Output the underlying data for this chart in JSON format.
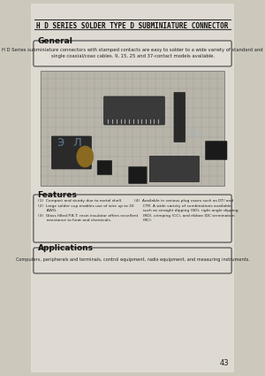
{
  "title": "H D SERIES SOLDER TYPE D SUBMINIATURE CONNECTOR",
  "bg_color": "#e8e4dc",
  "page_bg": "#d6d0c4",
  "general_title": "General",
  "general_text": "H D Series subminiature connectors with stamped contacts are easy to solder to a wide variety of standard and\nsingle coaxial/coax cables. 9, 15, 25 and 37-contact models available.",
  "features_title": "Features",
  "features_left": [
    "(1)  Compact and sturdy due to metal shell.",
    "(2)  Large solder cup enables use of wire up to 20\n       AWG.",
    "(3)  Glass filled P.B.T. resin insulator offers excellent\n       resistance to heat and chemicals."
  ],
  "features_right": [
    "(4)  Available in various plug cases such as DT/ and\n       CTR. A wide variety of combinations available,\n       such as straight dipping (SD), right angle dipping\n       (RD), crimping (CC), and ribbon IDC termination\n       (RC)."
  ],
  "applications_title": "Applications",
  "applications_text": "Computers, peripherals and terminals, control equipment, radio equipment, and measuring instruments.",
  "page_number": "43",
  "watermark_lines": [
    "э л",
    ""
  ],
  "watermark_url": "ru"
}
